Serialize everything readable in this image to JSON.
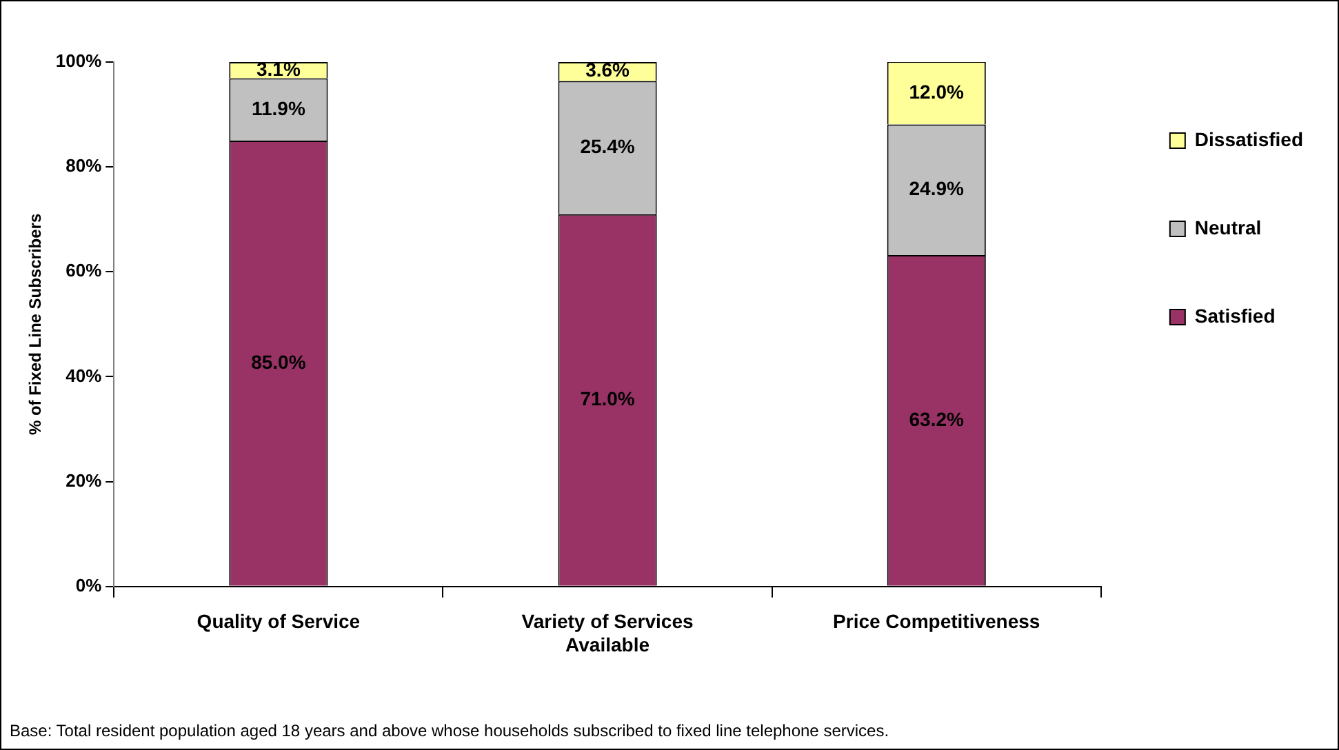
{
  "chart_data": {
    "type": "bar",
    "stacked": true,
    "ylabel": "% of Fixed Line Subscribers",
    "categories": [
      "Quality of Service",
      "Variety of Services Available",
      "Price Competitiveness"
    ],
    "series": [
      {
        "name": "Satisfied",
        "color": "#993366",
        "values": [
          85.0,
          71.0,
          63.2
        ],
        "value_labels": [
          "85.0%",
          "71.0%",
          "63.2%"
        ]
      },
      {
        "name": "Neutral",
        "color": "#c0c0c0",
        "values": [
          11.9,
          25.4,
          24.9
        ],
        "value_labels": [
          "11.9%",
          "25.4%",
          "24.9%"
        ]
      },
      {
        "name": "Dissatisfied",
        "color": "#ffff99",
        "values": [
          3.1,
          3.6,
          12.0
        ],
        "value_labels": [
          "3.1%",
          "3.6%",
          "12.0%"
        ]
      }
    ],
    "ylim": [
      0,
      100
    ],
    "yticks": [
      {
        "value": 0,
        "label": "0%"
      },
      {
        "value": 20,
        "label": "20%"
      },
      {
        "value": 40,
        "label": "40%"
      },
      {
        "value": 60,
        "label": "60%"
      },
      {
        "value": 80,
        "label": "80%"
      },
      {
        "value": 100,
        "label": "100%"
      }
    ],
    "grid": false,
    "legend": "right",
    "annotations": [
      "Base: Total resident population aged 18 years and above whose households subscribed to fixed line telephone services."
    ]
  }
}
